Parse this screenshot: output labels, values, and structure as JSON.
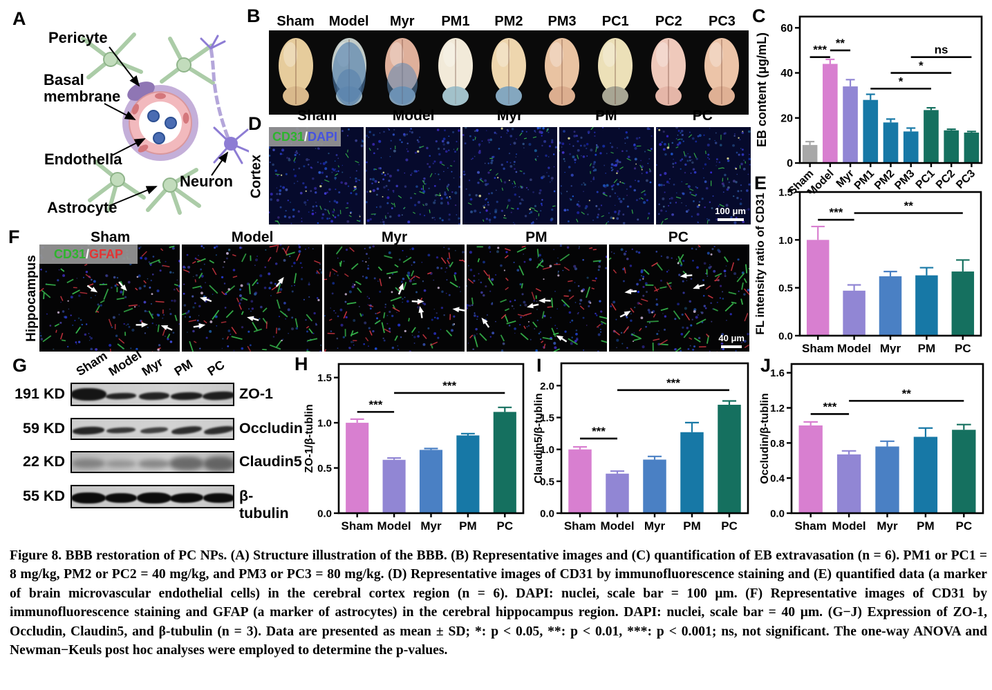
{
  "letters": {
    "a": "A",
    "b": "B",
    "c": "C",
    "d": "D",
    "e": "E",
    "f": "F",
    "g": "G",
    "h": "H",
    "i": "I",
    "j": "J"
  },
  "panels": {
    "A": {
      "labels": {
        "pericyte": "Pericyte",
        "basal1": "Basal",
        "basal2": "membrane",
        "endothelia": "Endothelia",
        "astrocyte": "Astrocyte",
        "neuron": "Neuron"
      }
    },
    "B": {
      "groups": [
        "Sham",
        "Model",
        "Myr",
        "PM1",
        "PM2",
        "PM3",
        "PC1",
        "PC2",
        "PC3"
      ],
      "brains": [
        {
          "main": "#e6cc9c",
          "cereb": "#d9b98c",
          "stain": "none",
          "stain_color": "",
          "op": 0
        },
        {
          "main": "#c3ccc8",
          "cereb": "#9fb4bd",
          "stain": "full",
          "stain_color": "#4f7cab",
          "op": 0.62
        },
        {
          "main": "#dfb09b",
          "cereb": "#7f9cb4",
          "stain": "bottom",
          "stain_color": "#5d88b4",
          "op": 0.55
        },
        {
          "main": "#f2ead9",
          "cereb": "#a9c2ca",
          "stain": "cereb",
          "stain_color": "#9fc0ca",
          "op": 0.6
        },
        {
          "main": "#eed6ae",
          "cereb": "#8fadbf",
          "stain": "cereb",
          "stain_color": "#7ba3bf",
          "op": 0.55
        },
        {
          "main": "#e9c3a2",
          "cereb": "#dcae8f",
          "stain": "none",
          "stain_color": "",
          "op": 0
        },
        {
          "main": "#ece0b8",
          "cereb": "#a8a694",
          "stain": "none",
          "stain_color": "",
          "op": 0
        },
        {
          "main": "#efc9bb",
          "cereb": "#e5b6a8",
          "stain": "none",
          "stain_color": "",
          "op": 0
        },
        {
          "main": "#ecc4a8",
          "cereb": "#dfb094",
          "stain": "none",
          "stain_color": "",
          "op": 0
        }
      ]
    },
    "D": {
      "region": "Cortex",
      "columns": [
        "Sham",
        "Model",
        "Myr",
        "PM",
        "PC"
      ],
      "stain_label": {
        "first": "CD31",
        "slash": "/",
        "second": "DAPI",
        "first_color": "#2db42d",
        "second_color": "#4553e0"
      },
      "scale_bar": "100 μm"
    },
    "F": {
      "region": "Hippocampus",
      "columns": [
        "Sham",
        "Model",
        "Myr",
        "PM",
        "PC"
      ],
      "stain_label": {
        "first": "CD31",
        "slash": "/",
        "second": "GFAP",
        "first_color": "#2db42d",
        "second_color": "#e33434"
      },
      "scale_bar": "40 μm"
    },
    "G": {
      "lanes": [
        "Sham",
        "Model",
        "Myr",
        "PM",
        "PC"
      ],
      "rows": [
        {
          "kd": "191 KD",
          "protein": "ZO-1"
        },
        {
          "kd": "59 KD",
          "protein": "Occludin"
        },
        {
          "kd": "22 KD",
          "protein": "Claudin5"
        },
        {
          "kd": "55 KD",
          "protein": "β-tubulin"
        }
      ]
    }
  },
  "chart_data": [
    {
      "panel": "C",
      "type": "bar",
      "ylabel": "EB content (μg/mL)",
      "ylim": [
        0,
        65
      ],
      "yticks": [
        0,
        20,
        40,
        60
      ],
      "ytick_labels": [
        "0",
        "20",
        "40",
        "60"
      ],
      "categories": [
        "Sham",
        "Model",
        "Myr",
        "PM1",
        "PM2",
        "PM3",
        "PC1",
        "PC2",
        "PC3"
      ],
      "values": [
        8,
        44,
        34,
        28,
        18,
        14,
        23.5,
        14.5,
        13.5
      ],
      "errors": [
        1.5,
        2,
        3,
        2.5,
        1.5,
        1.5,
        1,
        0.5,
        0.5
      ],
      "colors": [
        "#a8a8a8",
        "#d87fd0",
        "#9186d4",
        "#1778a6",
        "#1778a6",
        "#1778a6",
        "#15705f",
        "#15705f",
        "#15705f"
      ],
      "sig": [
        {
          "from": 0,
          "to": 1,
          "label": "***",
          "y": 47
        },
        {
          "from": 1,
          "to": 2,
          "label": "**",
          "y": 50
        },
        {
          "from": 3,
          "to": 6,
          "label": "*",
          "y": 33
        },
        {
          "from": 4,
          "to": 7,
          "label": "*",
          "y": 40
        },
        {
          "from": 5,
          "to": 8,
          "label": "ns",
          "y": 47
        }
      ]
    },
    {
      "panel": "E",
      "type": "bar",
      "ylabel": "FL intensity ratio of CD31",
      "ylim": [
        0,
        1.5
      ],
      "yticks": [
        0,
        0.5,
        1,
        1.5
      ],
      "ytick_labels": [
        "0.0",
        "0.5",
        "1.0",
        "1.5"
      ],
      "categories": [
        "Sham",
        "Model",
        "Myr",
        "PM",
        "PC"
      ],
      "values": [
        1.0,
        0.47,
        0.62,
        0.63,
        0.67
      ],
      "errors": [
        0.14,
        0.06,
        0.05,
        0.08,
        0.12
      ],
      "colors": [
        "#d87fd0",
        "#9186d4",
        "#4a80c4",
        "#1778a6",
        "#15705f"
      ],
      "sig": [
        {
          "from": 0,
          "to": 1,
          "label": "***",
          "y": 1.21
        },
        {
          "from": 1,
          "to": 4,
          "label": "**",
          "y": 1.28
        }
      ]
    },
    {
      "panel": "H",
      "type": "bar",
      "ylabel": "ZO-1/β-tublin",
      "ylim": [
        0,
        1.65
      ],
      "yticks": [
        0,
        0.5,
        1,
        1.5
      ],
      "ytick_labels": [
        "0.0",
        "0.5",
        "1.0",
        "1.5"
      ],
      "categories": [
        "Sham",
        "Model",
        "Myr",
        "PM",
        "PC"
      ],
      "values": [
        1.0,
        0.59,
        0.7,
        0.86,
        1.12
      ],
      "errors": [
        0.04,
        0.02,
        0.015,
        0.02,
        0.05
      ],
      "colors": [
        "#d87fd0",
        "#9186d4",
        "#4a80c4",
        "#1778a6",
        "#15705f"
      ],
      "sig": [
        {
          "from": 0,
          "to": 1,
          "label": "***",
          "y": 1.12
        },
        {
          "from": 1,
          "to": 4,
          "label": "***",
          "y": 1.33
        }
      ]
    },
    {
      "panel": "I",
      "type": "bar",
      "ylabel": "Claudin5/β-tublin",
      "ylim": [
        0,
        2.35
      ],
      "yticks": [
        0,
        0.5,
        1,
        1.5,
        2
      ],
      "ytick_labels": [
        "0.0",
        "0.5",
        "1.0",
        "1.5",
        "2.0"
      ],
      "categories": [
        "Sham",
        "Model",
        "Myr",
        "PM",
        "PC"
      ],
      "values": [
        1.0,
        0.62,
        0.84,
        1.27,
        1.7
      ],
      "errors": [
        0.04,
        0.04,
        0.05,
        0.15,
        0.06
      ],
      "colors": [
        "#d87fd0",
        "#9186d4",
        "#4a80c4",
        "#1778a6",
        "#15705f"
      ],
      "sig": [
        {
          "from": 0,
          "to": 1,
          "label": "***",
          "y": 1.17
        },
        {
          "from": 1,
          "to": 4,
          "label": "***",
          "y": 1.93
        }
      ]
    },
    {
      "panel": "J",
      "type": "bar",
      "ylabel": "Occludin/β-tublin",
      "ylim": [
        0,
        1.7
      ],
      "yticks": [
        0,
        0.4,
        0.8,
        1.2,
        1.6
      ],
      "ytick_labels": [
        "0.0",
        "0.4",
        "0.8",
        "1.2",
        "1.6"
      ],
      "categories": [
        "Sham",
        "Model",
        "Myr",
        "PM",
        "PC"
      ],
      "values": [
        1.0,
        0.67,
        0.76,
        0.87,
        0.95
      ],
      "errors": [
        0.04,
        0.04,
        0.06,
        0.1,
        0.06
      ],
      "colors": [
        "#d87fd0",
        "#9186d4",
        "#4a80c4",
        "#1778a6",
        "#15705f"
      ],
      "sig": [
        {
          "from": 0,
          "to": 1,
          "label": "***",
          "y": 1.13
        },
        {
          "from": 1,
          "to": 4,
          "label": "**",
          "y": 1.28
        }
      ]
    }
  ],
  "caption": {
    "text": "Figure 8. BBB restoration of PC NPs. (A) Structure illustration of the BBB. (B) Representative images and (C) quantification of EB extravasation (n = 6). PM1 or PC1 = 8 mg/kg, PM2 or PC2 = 40 mg/kg, and PM3 or PC3 = 80 mg/kg. (D) Representative images of CD31 by immunofluorescence staining and (E) quantified data (a marker of brain microvascular endothelial cells) in the cerebral cortex region (n = 6). DAPI: nuclei, scale bar = 100 μm. (F) Representative images of CD31 by immunofluorescence staining and GFAP (a marker of astrocytes) in the cerebral hippocampus region. DAPI: nuclei, scale bar = 40 μm. (G−J) Expression of ZO-1, Occludin, Claudin5, and β-tubulin (n = 3). Data are presented as mean ± SD; *: p < 0.05, **: p < 0.01, ***: p < 0.001; ns, not significant. The one-way ANOVA and Newman−Keuls post hoc analyses were employed to determine the p-values."
  }
}
